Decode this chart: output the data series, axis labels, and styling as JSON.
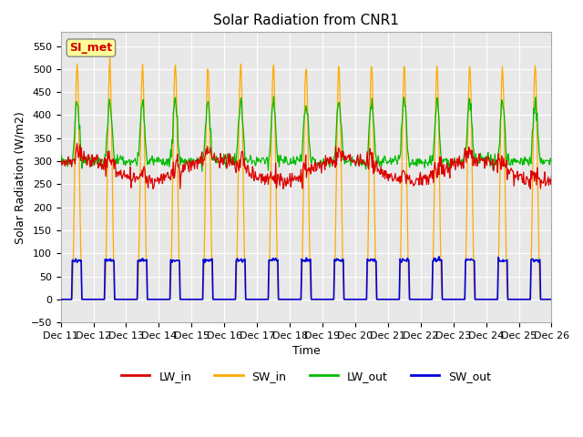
{
  "title": "Solar Radiation from CNR1",
  "xlabel": "Time",
  "ylabel": "Solar Radiation (W/m2)",
  "ylim": [
    -50,
    580
  ],
  "yticks": [
    -50,
    0,
    50,
    100,
    150,
    200,
    250,
    300,
    350,
    400,
    450,
    500,
    550
  ],
  "annotation_text": "SI_met",
  "annotation_color": "#cc0000",
  "annotation_bg": "#ffff99",
  "colors": {
    "LW_in": "#dd0000",
    "SW_in": "#ffaa00",
    "LW_out": "#00bb00",
    "SW_out": "#0000dd"
  },
  "background_color": "#e8e8e8",
  "grid_color": "#ffffff",
  "start_day": 11,
  "end_day": 26
}
